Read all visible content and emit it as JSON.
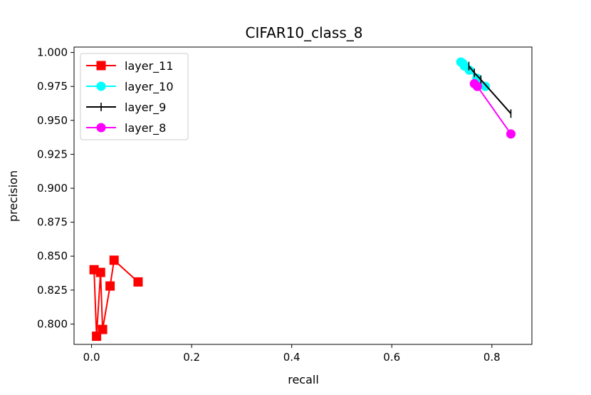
{
  "chart_data": {
    "type": "line",
    "title": "CIFAR10_class_8",
    "xlabel": "recall",
    "ylabel": "precision",
    "xlim": [
      -0.035,
      0.88
    ],
    "ylim": [
      0.785,
      1.004
    ],
    "xticks": [
      0.0,
      0.2,
      0.4,
      0.6,
      0.8
    ],
    "xtick_labels": [
      "0.0",
      "0.2",
      "0.4",
      "0.6",
      "0.8"
    ],
    "yticks": [
      0.8,
      0.825,
      0.85,
      0.875,
      0.9,
      0.925,
      0.95,
      0.975,
      1.0
    ],
    "ytick_labels": [
      "0.800",
      "0.825",
      "0.850",
      "0.875",
      "0.900",
      "0.925",
      "0.950",
      "0.975",
      "1.000"
    ],
    "legend_position": "top-left",
    "grid": false,
    "series": [
      {
        "name": "layer_11",
        "color": "#ff0000",
        "marker": "square",
        "x": [
          0.093,
          0.045,
          0.037,
          0.022,
          0.018,
          0.01,
          0.005
        ],
        "y": [
          0.831,
          0.847,
          0.828,
          0.796,
          0.838,
          0.791,
          0.84
        ]
      },
      {
        "name": "layer_10",
        "color": "#00ffff",
        "marker": "circle",
        "x": [
          0.787,
          0.77,
          0.755,
          0.745,
          0.742,
          0.738
        ],
        "y": [
          0.975,
          0.981,
          0.987,
          0.99,
          0.992,
          0.993
        ]
      },
      {
        "name": "layer_9",
        "color": "#000000",
        "marker": "vline",
        "x": [
          0.838,
          0.778,
          0.765,
          0.754
        ],
        "y": [
          0.955,
          0.98,
          0.985,
          0.99
        ]
      },
      {
        "name": "layer_8",
        "color": "#ff00ff",
        "marker": "circle",
        "x": [
          0.838,
          0.771,
          0.765
        ],
        "y": [
          0.94,
          0.975,
          0.977
        ]
      }
    ]
  }
}
